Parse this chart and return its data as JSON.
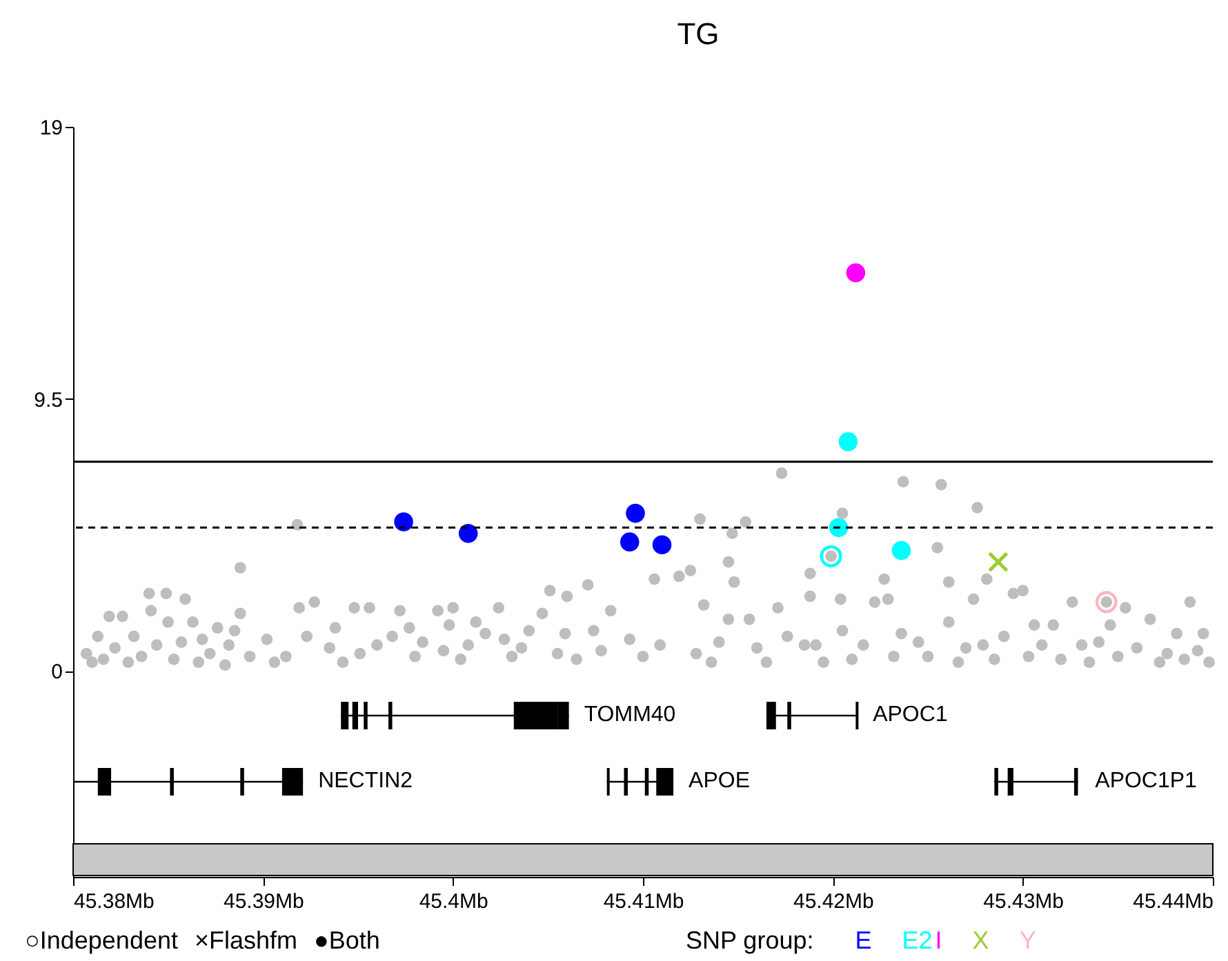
{
  "chart_data": {
    "type": "scatter",
    "title": "TG",
    "legend": "bottom right",
    "legend_title": "SNP group:",
    "xlim": [
      45.38,
      45.44
    ],
    "xticks": [
      {
        "value": 45.38,
        "label": "45.38Mb"
      },
      {
        "value": 45.39,
        "label": "45.39Mb"
      },
      {
        "value": 45.4,
        "label": "45.4Mb"
      },
      {
        "value": 45.41,
        "label": "45.41Mb"
      },
      {
        "value": 45.42,
        "label": "45.42Mb"
      },
      {
        "value": 45.43,
        "label": "45.43Mb"
      },
      {
        "value": 45.44,
        "label": "45.44Mb"
      }
    ],
    "ylim": [
      -7.2,
      19
    ],
    "yticks": [
      0,
      9.5,
      19
    ],
    "ref_lines": [
      {
        "axis": "y",
        "value": 7.3,
        "line_style": "solid"
      },
      {
        "axis": "y",
        "value": 5,
        "line_style": "dashed"
      }
    ],
    "annotations": [
      "○Independent",
      "×Flashfm",
      "●Both",
      "TOMM40",
      "APOC1",
      "NECTIN2",
      "APOE",
      "APOC1P1"
    ],
    "series": [
      {
        "color": "#bebebe",
        "marker": "circle",
        "x": [
          45.3807,
          45.381,
          45.3813,
          45.3816,
          45.3819,
          45.3822,
          45.3826,
          45.3829,
          45.3832,
          45.3836,
          45.384,
          45.3841,
          45.3844,
          45.3849,
          45.385,
          45.3853,
          45.3857,
          45.3859,
          45.3863,
          45.3866,
          45.3868,
          45.3872,
          45.3876,
          45.388,
          45.3882,
          45.3885,
          45.3888,
          45.3888,
          45.3893,
          45.3902,
          45.3906,
          45.3912,
          45.3918,
          45.3919,
          45.3923,
          45.3927,
          45.3935,
          45.3938,
          45.3942,
          45.3948,
          45.3951,
          45.3956,
          45.396,
          45.3968,
          45.3972,
          45.3977,
          45.398,
          45.3984,
          45.3992,
          45.3995,
          45.3998,
          45.4,
          45.4004,
          45.4008,
          45.4012,
          45.4017,
          45.4024,
          45.4027,
          45.4031,
          45.4036,
          45.404,
          45.4047,
          45.4051,
          45.4055,
          45.4059,
          45.406,
          45.4065,
          45.4071,
          45.4074,
          45.4078,
          45.4083,
          45.4093,
          45.41,
          45.4106,
          45.4109,
          45.4119,
          45.4125,
          45.4128,
          45.413,
          45.4132,
          45.4136,
          45.414,
          45.4145,
          45.4145,
          45.4147,
          45.4148,
          45.4154,
          45.4156,
          45.416,
          45.4165,
          45.4171,
          45.4173,
          45.4176,
          45.4185,
          45.4188,
          45.4188,
          45.4191,
          45.4195,
          45.4199,
          45.4204,
          45.4205,
          45.4205,
          45.421,
          45.4216,
          45.4222,
          45.4227,
          45.4229,
          45.4232,
          45.4236,
          45.4237,
          45.4245,
          45.425,
          45.4255,
          45.4257,
          45.4261,
          45.4261,
          45.4266,
          45.427,
          45.4274,
          45.4276,
          45.4279,
          45.4281,
          45.4285,
          45.429,
          45.4295,
          45.43,
          45.4303,
          45.4306,
          45.431,
          45.4316,
          45.432,
          45.4326,
          45.4331,
          45.4335,
          45.434,
          45.4344,
          45.4346,
          45.435,
          45.4354,
          45.436,
          45.4367,
          45.4372,
          45.4376,
          45.4381,
          45.4385,
          45.4388,
          45.4392,
          45.4395,
          45.4398
        ],
        "values": [
          0.6,
          0.3,
          1.2,
          0.4,
          1.9,
          0.8,
          1.9,
          0.3,
          1.2,
          0.5,
          2.7,
          2.1,
          0.9,
          2.7,
          1.7,
          0.4,
          1,
          2.5,
          1.7,
          0.3,
          1.1,
          0.6,
          1.5,
          0.2,
          0.9,
          1.4,
          2,
          3.6,
          0.5,
          1.1,
          0.3,
          0.5,
          5.1,
          2.2,
          1.2,
          2.4,
          0.8,
          1.5,
          0.3,
          2.2,
          0.6,
          2.2,
          0.9,
          1.2,
          2.1,
          1.5,
          0.5,
          1,
          2.1,
          0.7,
          1.6,
          2.2,
          0.4,
          0.9,
          1.7,
          1.3,
          2.2,
          1.1,
          0.5,
          0.8,
          1.4,
          2,
          2.8,
          0.6,
          1.3,
          2.6,
          0.4,
          3,
          1.4,
          0.7,
          2.1,
          1.1,
          0.5,
          3.2,
          0.9,
          3.3,
          3.5,
          0.6,
          5.3,
          2.3,
          0.3,
          1,
          1.8,
          3.8,
          4.8,
          3.1,
          5.2,
          1.8,
          0.8,
          0.3,
          2.2,
          6.9,
          1.2,
          0.9,
          3.4,
          2.6,
          0.9,
          0.3,
          4,
          2.5,
          5.5,
          1.4,
          0.4,
          0.9,
          2.4,
          3.2,
          2.5,
          0.5,
          1.3,
          6.6,
          1,
          0.5,
          4.3,
          6.5,
          3.1,
          1.7,
          0.3,
          0.8,
          2.5,
          5.7,
          0.9,
          3.2,
          0.4,
          1.2,
          2.7,
          2.8,
          0.5,
          1.6,
          0.9,
          1.6,
          0.4,
          2.4,
          0.9,
          0.3,
          1,
          2.4,
          1.6,
          0.5,
          2.2,
          0.8,
          1.8,
          0.3,
          0.6,
          1.3,
          0.4,
          2.4,
          0.7,
          1.3,
          0.3
        ]
      },
      {
        "name": "E",
        "color": "#0000ff",
        "marker": "circle",
        "x": [
          45.3974,
          45.4008,
          45.4096,
          45.4093,
          45.411
        ],
        "values": [
          5.2,
          4.8,
          5.5,
          4.5,
          4.4
        ]
      },
      {
        "name": "E2",
        "color": "#00ffff",
        "marker": "circle",
        "x": [
          45.4208,
          45.4203,
          45.4236
        ],
        "values": [
          8,
          5,
          4.2
        ]
      },
      {
        "name": "I",
        "color": "#ff00ff",
        "marker": "circle",
        "x": [
          45.4212
        ],
        "values": [
          13.9
        ]
      },
      {
        "name": "X",
        "color": "#9acd32",
        "marker": "cross",
        "x": [
          45.4287
        ],
        "values": [
          3.8
        ]
      },
      {
        "name": "Y",
        "color": "#ffb6c1",
        "x": [
          45.4344
        ],
        "values": [
          2.4
        ]
      },
      {
        "color": "#00ffff",
        "x": [
          45.4199
        ],
        "values": [
          4
        ]
      }
    ]
  }
}
